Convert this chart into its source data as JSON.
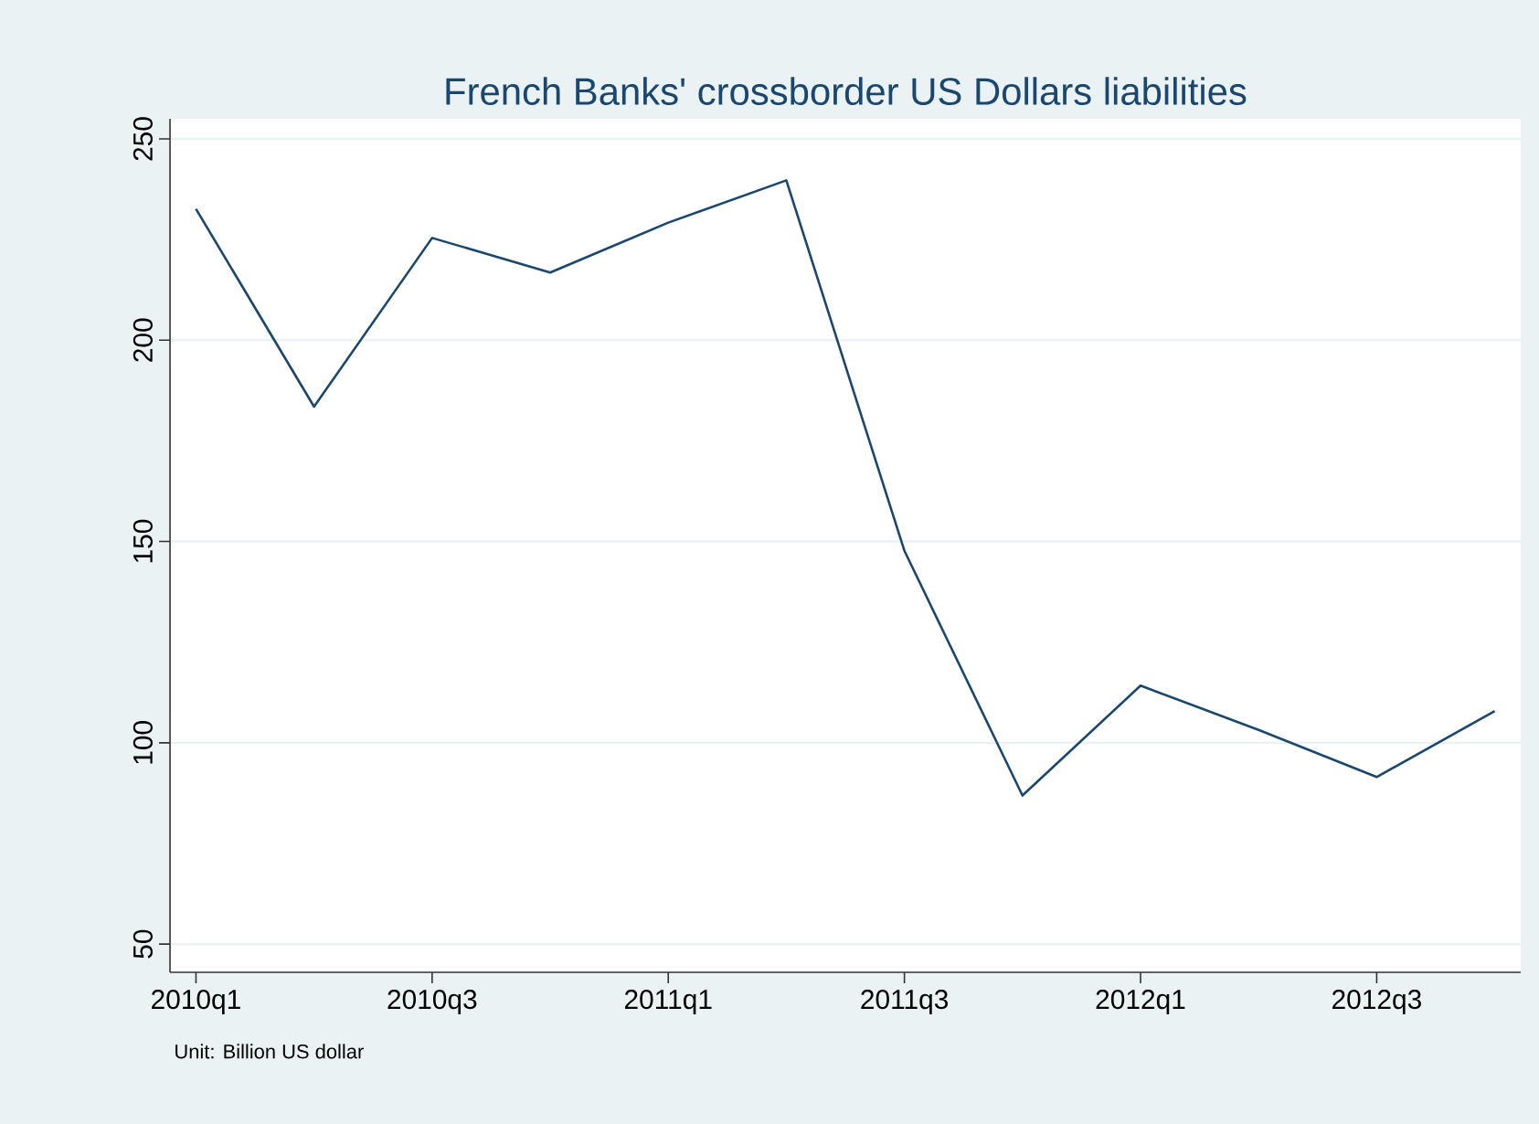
{
  "chart_data": {
    "type": "line",
    "title": "French Banks' crossborder US Dollars liabilities",
    "categories": [
      "2010q1",
      null,
      "2010q3",
      null,
      "2011q1",
      null,
      "2011q3",
      null,
      "2012q1",
      null,
      "2012q3",
      null
    ],
    "series": [
      {
        "color": "#1a476f",
        "values": [
          232.6,
          183.5,
          225.4,
          216.8,
          229.2,
          239.7,
          147.7,
          86.9,
          114.2,
          103.2,
          91.5,
          107.9
        ]
      }
    ],
    "ylim": [
      43,
      255
    ],
    "yticks": [
      50,
      100,
      150,
      200,
      250
    ],
    "grid": "y",
    "annotations": [
      "Unit: Billion US dollar"
    ]
  }
}
